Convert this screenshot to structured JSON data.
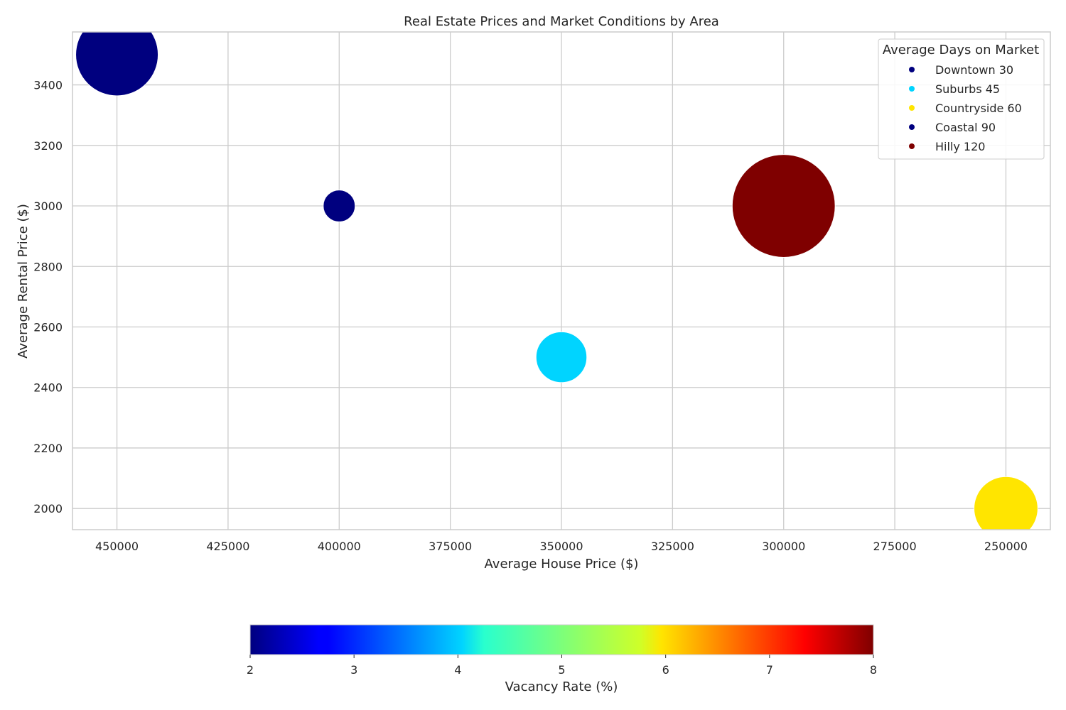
{
  "chart_data": {
    "type": "scatter",
    "title": "Real Estate Prices and Market Conditions by Area",
    "xlabel": "Average House Price ($)",
    "ylabel": "Average Rental Price ($)",
    "x_inverted": true,
    "xlim": [
      460000,
      240000
    ],
    "ylim": [
      1930,
      3575
    ],
    "x_ticks": [
      450000,
      425000,
      400000,
      375000,
      350000,
      325000,
      300000,
      275000,
      250000
    ],
    "x_tick_labels": [
      "450000",
      "425000",
      "400000",
      "375000",
      "350000",
      "325000",
      "300000",
      "275000",
      "250000"
    ],
    "y_ticks": [
      2000,
      2200,
      2400,
      2600,
      2800,
      3000,
      3200,
      3400
    ],
    "y_tick_labels": [
      "2000",
      "2200",
      "2400",
      "2600",
      "2800",
      "3000",
      "3200",
      "3400"
    ],
    "grid": true,
    "points": [
      {
        "x": 450000,
        "y": 3500,
        "vacancy_rate": 2,
        "color": "#00007f",
        "bubble_size": 1.0
      },
      {
        "x": 400000,
        "y": 3000,
        "vacancy_rate": 2,
        "color": "#00007f",
        "bubble_size": 0.15
      },
      {
        "x": 350000,
        "y": 2500,
        "vacancy_rate": 4.2,
        "color": "#00d4ff",
        "bubble_size": 0.38
      },
      {
        "x": 300000,
        "y": 3000,
        "vacancy_rate": 8,
        "color": "#7f0000",
        "bubble_size": 1.56
      },
      {
        "x": 250000,
        "y": 2000,
        "vacancy_rate": 5.9,
        "color": "#ffe500",
        "bubble_size": 0.6
      }
    ],
    "legend": {
      "title": "Average Days on Market",
      "placement": "top-right",
      "entries": [
        {
          "label": "Downtown 30",
          "color": "#00007f"
        },
        {
          "label": "Suburbs 45",
          "color": "#00d4ff"
        },
        {
          "label": "Countryside 60",
          "color": "#ffe500"
        },
        {
          "label": "Coastal 90",
          "color": "#00007f"
        },
        {
          "label": "Hilly 120",
          "color": "#7f0000"
        }
      ]
    },
    "colorbar": {
      "label": "Vacancy Rate (%)",
      "colormap": "jet",
      "range": [
        2,
        8
      ],
      "ticks": [
        2,
        3,
        4,
        5,
        6,
        7,
        8
      ],
      "tick_labels": [
        "2",
        "3",
        "4",
        "5",
        "6",
        "7",
        "8"
      ],
      "placement": "bottom"
    }
  }
}
